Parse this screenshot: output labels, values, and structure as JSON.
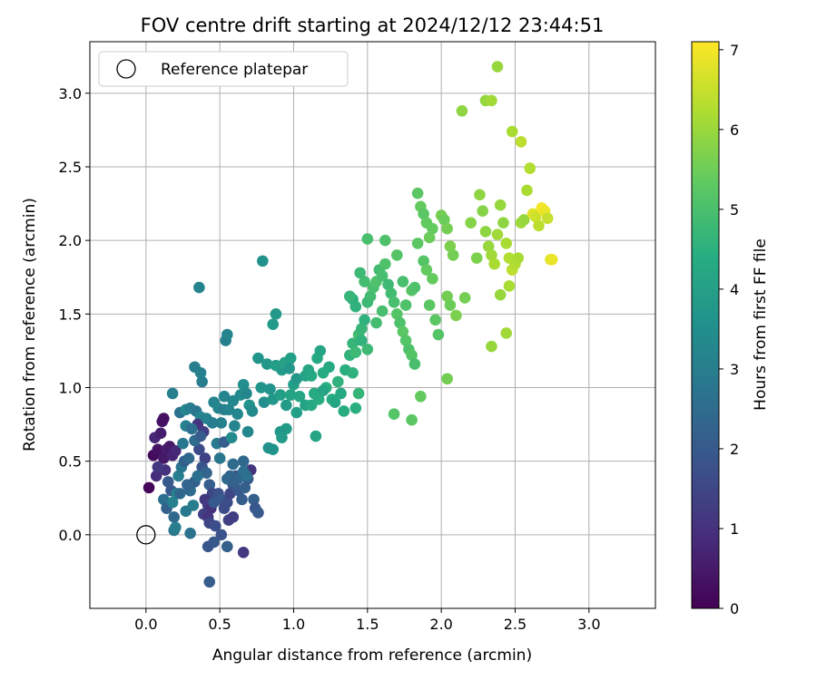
{
  "chart_data": {
    "type": "scatter",
    "title": "FOV centre drift starting at 2024/12/12 23:44:51",
    "xlabel": "Angular distance from reference (arcmin)",
    "ylabel": "Rotation from reference (arcmin)",
    "xlim": [
      -0.38,
      3.45
    ],
    "ylim": [
      -0.5,
      3.35
    ],
    "xticks": [
      "0.0",
      "0.5",
      "1.0",
      "1.5",
      "2.0",
      "2.5",
      "3.0"
    ],
    "xtick_values": [
      0.0,
      0.5,
      1.0,
      1.5,
      2.0,
      2.5,
      3.0
    ],
    "yticks": [
      "0.0",
      "0.5",
      "1.0",
      "1.5",
      "2.0",
      "2.5",
      "3.0"
    ],
    "ytick_values": [
      0.0,
      0.5,
      1.0,
      1.5,
      2.0,
      2.5,
      3.0
    ],
    "grid": true,
    "legend": {
      "location": "upper-left",
      "entries": [
        "Reference platepar"
      ]
    },
    "reference_point": {
      "label": "Reference platepar",
      "x": 0.0,
      "y": 0.0,
      "marker": "open-circle"
    },
    "colorbar": {
      "label": "Hours from first FF file",
      "colormap": "viridis",
      "range": [
        0,
        7.1
      ],
      "ticks": [
        "0",
        "1",
        "2",
        "3",
        "4",
        "5",
        "6",
        "7"
      ],
      "tick_values": [
        0,
        1,
        2,
        3,
        4,
        5,
        6,
        7
      ]
    },
    "points": [
      [
        0.02,
        0.32,
        0.1
      ],
      [
        0.05,
        0.54,
        0.2
      ],
      [
        0.08,
        0.58,
        0.4
      ],
      [
        0.1,
        0.56,
        0.3
      ],
      [
        0.12,
        0.52,
        0.5
      ],
      [
        0.14,
        0.58,
        0.6
      ],
      [
        0.16,
        0.6,
        0.5
      ],
      [
        0.18,
        0.54,
        0.7
      ],
      [
        0.2,
        0.57,
        0.8
      ],
      [
        0.11,
        0.77,
        0.4
      ],
      [
        0.12,
        0.79,
        0.3
      ],
      [
        0.06,
        0.66,
        0.8
      ],
      [
        0.1,
        0.69,
        0.6
      ],
      [
        0.07,
        0.4,
        0.9
      ],
      [
        0.13,
        0.44,
        1.0
      ],
      [
        0.08,
        0.46,
        1.2
      ],
      [
        0.15,
        0.36,
        2.0
      ],
      [
        0.12,
        0.24,
        2.6
      ],
      [
        0.14,
        0.18,
        2.2
      ],
      [
        0.17,
        0.3,
        2.0
      ],
      [
        0.19,
        0.12,
        2.4
      ],
      [
        0.21,
        0.28,
        3.2
      ],
      [
        0.18,
        0.22,
        3.1
      ],
      [
        0.22,
        0.4,
        3.0
      ],
      [
        0.24,
        0.46,
        2.8
      ],
      [
        0.26,
        0.5,
        2.2
      ],
      [
        0.25,
        0.62,
        2.9
      ],
      [
        0.27,
        0.74,
        3.1
      ],
      [
        0.23,
        0.83,
        2.7
      ],
      [
        0.27,
        0.85,
        3.3
      ],
      [
        0.3,
        0.86,
        3.0
      ],
      [
        0.34,
        0.84,
        2.8
      ],
      [
        0.37,
        0.8,
        3.2
      ],
      [
        0.35,
        0.75,
        1.1
      ],
      [
        0.39,
        0.7,
        1.3
      ],
      [
        0.36,
        0.58,
        1.6
      ],
      [
        0.4,
        0.52,
        1.4
      ],
      [
        0.38,
        0.46,
        1.9
      ],
      [
        0.41,
        0.42,
        2.3
      ],
      [
        0.43,
        0.34,
        2.1
      ],
      [
        0.45,
        0.28,
        1.5
      ],
      [
        0.4,
        0.24,
        1.2
      ],
      [
        0.42,
        0.2,
        1.3
      ],
      [
        0.44,
        0.18,
        1.0
      ],
      [
        0.39,
        0.14,
        1.4
      ],
      [
        0.42,
        0.12,
        1.1
      ],
      [
        0.43,
        0.08,
        1.5
      ],
      [
        0.47,
        0.06,
        1.7
      ],
      [
        0.46,
        0.22,
        2.0
      ],
      [
        0.49,
        0.28,
        1.8
      ],
      [
        0.51,
        0.24,
        2.0
      ],
      [
        0.53,
        0.18,
        1.6
      ],
      [
        0.55,
        0.22,
        1.7
      ],
      [
        0.57,
        0.28,
        1.5
      ],
      [
        0.59,
        0.34,
        1.9
      ],
      [
        0.61,
        0.4,
        1.8
      ],
      [
        0.63,
        0.3,
        2.0
      ],
      [
        0.65,
        0.24,
        2.1
      ],
      [
        0.67,
        0.32,
        2.2
      ],
      [
        0.69,
        0.38,
        2.0
      ],
      [
        0.71,
        0.44,
        1.1
      ],
      [
        0.73,
        0.24,
        2.2
      ],
      [
        0.74,
        0.18,
        1.9
      ],
      [
        0.76,
        0.15,
        2.0
      ],
      [
        0.56,
        0.1,
        1.4
      ],
      [
        0.59,
        0.12,
        1.3
      ],
      [
        0.51,
        0.0,
        1.8
      ],
      [
        0.46,
        -0.05,
        2.0
      ],
      [
        0.42,
        -0.08,
        1.9
      ],
      [
        0.55,
        -0.08,
        2.2
      ],
      [
        0.66,
        -0.12,
        1.2
      ],
      [
        0.43,
        -0.32,
        2.1
      ],
      [
        0.3,
        0.01,
        2.7
      ],
      [
        0.19,
        0.03,
        2.8
      ],
      [
        0.2,
        0.05,
        3.0
      ],
      [
        0.27,
        0.16,
        2.9
      ],
      [
        0.32,
        0.2,
        3.0
      ],
      [
        0.3,
        0.3,
        2.5
      ],
      [
        0.33,
        0.36,
        2.2
      ],
      [
        0.35,
        0.4,
        2.6
      ],
      [
        0.29,
        0.52,
        2.4
      ],
      [
        0.33,
        0.64,
        2.5
      ],
      [
        0.37,
        0.67,
        2.1
      ],
      [
        0.31,
        0.72,
        2.6
      ],
      [
        0.28,
        0.34,
        2.3
      ],
      [
        0.23,
        0.28,
        2.4
      ],
      [
        0.45,
        0.76,
        3.0
      ],
      [
        0.41,
        0.79,
        3.1
      ],
      [
        0.46,
        0.9,
        3.2
      ],
      [
        0.49,
        0.86,
        3.3
      ],
      [
        0.53,
        0.85,
        3.0
      ],
      [
        0.56,
        0.85,
        3.2
      ],
      [
        0.51,
        0.76,
        3.1
      ],
      [
        0.48,
        0.62,
        2.9
      ],
      [
        0.5,
        0.52,
        2.8
      ],
      [
        0.53,
        0.63,
        2.1
      ],
      [
        0.58,
        0.66,
        3.4
      ],
      [
        0.6,
        0.74,
        3.2
      ],
      [
        0.62,
        0.82,
        3.3
      ],
      [
        0.64,
        0.95,
        3.4
      ],
      [
        0.66,
        1.02,
        3.5
      ],
      [
        0.68,
        0.96,
        3.3
      ],
      [
        0.7,
        0.88,
        3.6
      ],
      [
        0.72,
        0.84,
        3.4
      ],
      [
        0.69,
        0.7,
        3.3
      ],
      [
        0.66,
        0.5,
        2.4
      ],
      [
        0.59,
        0.48,
        2.5
      ],
      [
        0.57,
        0.4,
        2.3
      ],
      [
        0.55,
        0.38,
        2.4
      ],
      [
        0.6,
        0.36,
        2.2
      ],
      [
        0.62,
        0.38,
        2.3
      ],
      [
        0.66,
        0.43,
        2.6
      ],
      [
        0.68,
        0.4,
        2.7
      ],
      [
        0.59,
        0.91,
        3.3
      ],
      [
        0.53,
        0.94,
        3.2
      ],
      [
        0.38,
        1.04,
        3.0
      ],
      [
        0.37,
        1.1,
        3.1
      ],
      [
        0.33,
        1.14,
        3.0
      ],
      [
        0.18,
        0.96,
        3.1
      ],
      [
        0.36,
        1.68,
        3.2
      ],
      [
        0.54,
        1.32,
        3.1
      ],
      [
        0.55,
        1.36,
        3.2
      ],
      [
        0.79,
        1.86,
        3.6
      ],
      [
        0.86,
        1.43,
        3.9
      ],
      [
        0.88,
        1.5,
        3.8
      ],
      [
        0.76,
        1.2,
        3.7
      ],
      [
        0.82,
        1.16,
        3.8
      ],
      [
        0.88,
        1.15,
        4.0
      ],
      [
        0.92,
        1.12,
        3.9
      ],
      [
        0.94,
        1.17,
        4.1
      ],
      [
        0.98,
        1.2,
        4.0
      ],
      [
        0.97,
        1.13,
        3.8
      ],
      [
        0.78,
        1.0,
        3.7
      ],
      [
        0.8,
        0.9,
        3.5
      ],
      [
        0.84,
        0.99,
        3.6
      ],
      [
        0.86,
        0.92,
        3.8
      ],
      [
        0.91,
        0.95,
        4.0
      ],
      [
        0.95,
        0.88,
        3.9
      ],
      [
        0.98,
        0.95,
        4.1
      ],
      [
        1.0,
        1.02,
        4.0
      ],
      [
        1.02,
        1.06,
        3.8
      ],
      [
        1.04,
        0.94,
        4.2
      ],
      [
        1.08,
        1.08,
        4.1
      ],
      [
        1.1,
        1.12,
        4.2
      ],
      [
        1.12,
        1.08,
        4.3
      ],
      [
        1.14,
        0.96,
        4.4
      ],
      [
        1.16,
        1.2,
        4.3
      ],
      [
        1.18,
        1.25,
        4.2
      ],
      [
        1.2,
        1.1,
        4.4
      ],
      [
        1.22,
        1.0,
        4.5
      ],
      [
        1.24,
        1.14,
        4.3
      ],
      [
        1.26,
        0.92,
        4.4
      ],
      [
        1.28,
        0.9,
        4.2
      ],
      [
        1.3,
        1.04,
        4.6
      ],
      [
        1.32,
        0.96,
        4.3
      ],
      [
        1.35,
        1.12,
        4.5
      ],
      [
        1.38,
        1.22,
        4.6
      ],
      [
        1.4,
        1.3,
        4.7
      ],
      [
        1.42,
        1.24,
        4.8
      ],
      [
        1.44,
        1.36,
        4.9
      ],
      [
        1.46,
        1.4,
        4.7
      ],
      [
        1.48,
        1.46,
        4.6
      ],
      [
        1.5,
        1.58,
        4.8
      ],
      [
        1.52,
        1.62,
        4.9
      ],
      [
        1.54,
        1.68,
        5.0
      ],
      [
        1.56,
        1.72,
        5.1
      ],
      [
        1.58,
        1.8,
        4.9
      ],
      [
        1.6,
        1.76,
        5.0
      ],
      [
        1.62,
        1.84,
        5.1
      ],
      [
        1.64,
        1.7,
        4.8
      ],
      [
        1.66,
        1.64,
        4.9
      ],
      [
        1.68,
        1.58,
        5.0
      ],
      [
        1.7,
        1.5,
        5.2
      ],
      [
        1.72,
        1.44,
        5.1
      ],
      [
        1.74,
        1.38,
        5.3
      ],
      [
        1.76,
        1.32,
        5.2
      ],
      [
        1.78,
        1.26,
        5.1
      ],
      [
        1.8,
        1.22,
        5.2
      ],
      [
        1.82,
        1.16,
        5.0
      ],
      [
        1.4,
        1.6,
        4.5
      ],
      [
        1.42,
        1.55,
        4.6
      ],
      [
        1.45,
        1.78,
        4.8
      ],
      [
        1.48,
        1.72,
        4.9
      ],
      [
        1.5,
        2.01,
        5.0
      ],
      [
        1.62,
        2.0,
        5.1
      ],
      [
        1.7,
        1.9,
        5.2
      ],
      [
        1.84,
        2.32,
        5.3
      ],
      [
        1.86,
        2.23,
        5.4
      ],
      [
        1.88,
        2.18,
        5.3
      ],
      [
        1.9,
        2.12,
        5.4
      ],
      [
        1.92,
        2.02,
        5.5
      ],
      [
        1.94,
        2.08,
        5.4
      ],
      [
        2.0,
        2.17,
        5.6
      ],
      [
        2.02,
        2.14,
        5.5
      ],
      [
        2.04,
        2.08,
        5.6
      ],
      [
        2.06,
        1.96,
        5.7
      ],
      [
        2.08,
        1.9,
        5.6
      ],
      [
        1.84,
        1.98,
        5.3
      ],
      [
        1.88,
        1.86,
        5.2
      ],
      [
        1.9,
        1.8,
        5.4
      ],
      [
        1.92,
        1.56,
        5.3
      ],
      [
        1.94,
        1.74,
        5.4
      ],
      [
        1.96,
        1.46,
        5.3
      ],
      [
        1.98,
        1.36,
        5.2
      ],
      [
        2.04,
        1.62,
        5.6
      ],
      [
        2.06,
        1.56,
        5.5
      ],
      [
        2.1,
        1.49,
        5.7
      ],
      [
        2.16,
        1.61,
        5.6
      ],
      [
        2.2,
        2.12,
        5.8
      ],
      [
        2.24,
        1.88,
        5.7
      ],
      [
        2.26,
        2.31,
        5.9
      ],
      [
        2.28,
        2.2,
        5.8
      ],
      [
        2.3,
        2.06,
        5.9
      ],
      [
        2.32,
        1.96,
        6.0
      ],
      [
        2.34,
        1.9,
        6.1
      ],
      [
        2.36,
        1.84,
        6.2
      ],
      [
        2.38,
        2.04,
        6.1
      ],
      [
        2.4,
        2.24,
        6.0
      ],
      [
        2.42,
        2.12,
        5.9
      ],
      [
        2.44,
        1.98,
        6.2
      ],
      [
        2.46,
        1.88,
        6.3
      ],
      [
        2.48,
        1.8,
        6.4
      ],
      [
        2.5,
        1.84,
        6.3
      ],
      [
        2.52,
        1.88,
        6.2
      ],
      [
        2.54,
        2.12,
        6.1
      ],
      [
        2.56,
        2.14,
        6.0
      ],
      [
        2.58,
        2.34,
        6.2
      ],
      [
        2.6,
        2.49,
        6.3
      ],
      [
        2.62,
        2.18,
        6.8
      ],
      [
        2.64,
        2.16,
        6.6
      ],
      [
        2.66,
        2.1,
        6.4
      ],
      [
        2.68,
        2.22,
        7.0
      ],
      [
        2.7,
        2.2,
        6.9
      ],
      [
        2.72,
        2.15,
        6.5
      ],
      [
        2.74,
        1.87,
        6.8
      ],
      [
        2.75,
        1.87,
        6.9
      ],
      [
        2.14,
        2.88,
        5.9
      ],
      [
        2.3,
        2.95,
        6.0
      ],
      [
        2.34,
        2.95,
        6.1
      ],
      [
        2.38,
        3.18,
        6.0
      ],
      [
        2.48,
        2.74,
        6.2
      ],
      [
        2.54,
        2.67,
        6.4
      ],
      [
        2.4,
        1.63,
        6.0
      ],
      [
        2.46,
        1.69,
        6.2
      ],
      [
        2.44,
        1.37,
        6.1
      ],
      [
        2.34,
        1.28,
        6.0
      ],
      [
        2.04,
        1.06,
        5.6
      ],
      [
        1.86,
        0.94,
        5.4
      ],
      [
        1.68,
        0.82,
        5.2
      ],
      [
        1.8,
        0.78,
        5.3
      ],
      [
        1.4,
        1.1,
        4.6
      ],
      [
        1.34,
        0.84,
        4.4
      ],
      [
        1.42,
        0.86,
        4.5
      ],
      [
        1.44,
        0.96,
        4.7
      ],
      [
        1.15,
        0.67,
        4.2
      ],
      [
        1.02,
        0.83,
        4.0
      ],
      [
        0.95,
        0.72,
        3.9
      ],
      [
        0.91,
        0.7,
        3.8
      ],
      [
        0.86,
        0.58,
        3.7
      ],
      [
        0.83,
        0.59,
        3.6
      ],
      [
        0.92,
        0.66,
        3.9
      ],
      [
        1.08,
        0.88,
        4.1
      ],
      [
        1.12,
        0.88,
        4.3
      ],
      [
        1.17,
        0.92,
        4.4
      ],
      [
        1.2,
        0.98,
        4.2
      ],
      [
        1.38,
        1.62,
        4.7
      ],
      [
        1.46,
        1.32,
        4.6
      ],
      [
        1.5,
        1.26,
        4.8
      ],
      [
        1.56,
        1.44,
        4.9
      ],
      [
        1.6,
        1.52,
        5.0
      ],
      [
        1.76,
        1.56,
        5.1
      ],
      [
        1.8,
        1.66,
        5.2
      ],
      [
        1.82,
        1.68,
        5.1
      ],
      [
        1.74,
        1.72,
        5.0
      ]
    ]
  }
}
